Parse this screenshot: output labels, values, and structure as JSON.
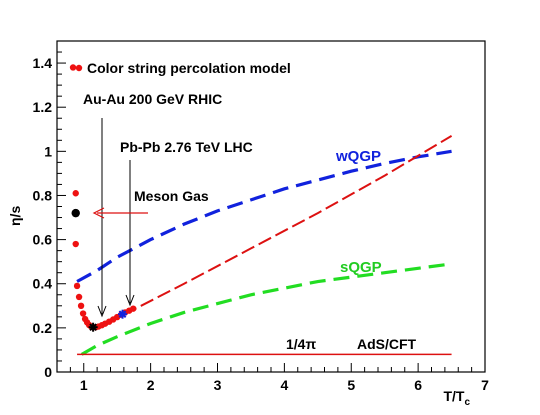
{
  "chart_data": {
    "type": "line",
    "xlabel": "T/T",
    "xlabel_sub": "c",
    "ylabel": "η/s",
    "xlim": [
      0.6,
      7
    ],
    "ylim": [
      0,
      1.5
    ],
    "xticks": [
      1,
      2,
      3,
      4,
      5,
      6,
      7
    ],
    "yticks": [
      0,
      0.2,
      0.4,
      0.6,
      0.8,
      1,
      1.2,
      1.4
    ],
    "grid": false,
    "legend": "top-left",
    "legend_entries": [
      {
        "label": "Color string percolation model",
        "marker": "dot",
        "color": "#ee1111"
      }
    ],
    "series": [
      {
        "name": "wQGP",
        "style": "dashed",
        "color": "#1122dd",
        "x": [
          0.9,
          1.2,
          1.5,
          2.0,
          2.5,
          3.0,
          3.5,
          4.0,
          4.5,
          5.0,
          5.5,
          6.0,
          6.5
        ],
        "y": [
          0.41,
          0.46,
          0.52,
          0.6,
          0.67,
          0.73,
          0.78,
          0.83,
          0.87,
          0.91,
          0.945,
          0.975,
          1.0
        ]
      },
      {
        "name": "sQGP",
        "style": "dashed",
        "color": "#22dd22",
        "x": [
          0.97,
          1.2,
          1.5,
          2.0,
          2.5,
          3.0,
          3.5,
          4.0,
          4.5,
          5.0,
          5.5,
          6.0,
          6.5
        ],
        "y": [
          0.08,
          0.12,
          0.16,
          0.22,
          0.27,
          0.31,
          0.35,
          0.38,
          0.41,
          0.43,
          0.45,
          0.47,
          0.49
        ]
      },
      {
        "name": "Color string percolation model (dashed)",
        "style": "dashed",
        "color": "#dd1111",
        "x": [
          1.6,
          2.5,
          3.5,
          4.5,
          5.5,
          6.5
        ],
        "y": [
          0.26,
          0.4,
          0.56,
          0.72,
          0.89,
          1.07
        ]
      },
      {
        "name": "AdS/CFT",
        "style": "solid",
        "color": "#dd1111",
        "x": [
          0.9,
          6.5
        ],
        "y": [
          0.0796,
          0.0796
        ]
      }
    ],
    "points": [
      {
        "x": 0.84,
        "y": 1.38,
        "color": "#ee1111",
        "r": 3.2
      },
      {
        "x": 0.88,
        "y": 0.81,
        "color": "#ee1111",
        "r": 3.2
      },
      {
        "x": 0.88,
        "y": 0.58,
        "color": "#ee1111",
        "r": 3.2
      },
      {
        "x": 0.9,
        "y": 0.39,
        "color": "#ee1111",
        "r": 3.2
      },
      {
        "x": 0.93,
        "y": 0.34,
        "color": "#ee1111",
        "r": 3.2
      },
      {
        "x": 0.96,
        "y": 0.3,
        "color": "#ee1111",
        "r": 3.2
      },
      {
        "x": 0.99,
        "y": 0.265,
        "color": "#ee1111",
        "r": 3.2
      },
      {
        "x": 1.02,
        "y": 0.24,
        "color": "#ee1111",
        "r": 3.2
      },
      {
        "x": 1.05,
        "y": 0.225,
        "color": "#ee1111",
        "r": 3.2
      },
      {
        "x": 1.08,
        "y": 0.213,
        "color": "#ee1111",
        "r": 3.2
      },
      {
        "x": 1.11,
        "y": 0.206,
        "color": "#ee1111",
        "r": 3.2
      },
      {
        "x": 1.14,
        "y": 0.203,
        "color": "#ee1111",
        "r": 3.2
      },
      {
        "x": 1.18,
        "y": 0.203,
        "color": "#ee1111",
        "r": 3.2
      },
      {
        "x": 1.22,
        "y": 0.206,
        "color": "#ee1111",
        "r": 3.2
      },
      {
        "x": 1.27,
        "y": 0.212,
        "color": "#ee1111",
        "r": 3.2
      },
      {
        "x": 1.32,
        "y": 0.219,
        "color": "#ee1111",
        "r": 3.2
      },
      {
        "x": 1.38,
        "y": 0.228,
        "color": "#ee1111",
        "r": 3.2
      },
      {
        "x": 1.44,
        "y": 0.238,
        "color": "#ee1111",
        "r": 3.2
      },
      {
        "x": 1.5,
        "y": 0.249,
        "color": "#ee1111",
        "r": 3.2
      },
      {
        "x": 1.56,
        "y": 0.26,
        "color": "#ee1111",
        "r": 3.2
      },
      {
        "x": 1.62,
        "y": 0.27,
        "color": "#ee1111",
        "r": 3.2
      },
      {
        "x": 1.68,
        "y": 0.278,
        "color": "#ee1111",
        "r": 3.2
      },
      {
        "x": 1.74,
        "y": 0.287,
        "color": "#ee1111",
        "r": 3.2
      }
    ],
    "special_points": [
      {
        "x": 0.88,
        "y": 0.72,
        "color": "#000000",
        "r": 4.2,
        "name": "meson-gas-point"
      },
      {
        "x": 1.14,
        "y": 0.203,
        "color": "#000000",
        "marker": "star",
        "name": "rhic-point"
      },
      {
        "x": 1.58,
        "y": 0.262,
        "color": "#1122dd",
        "marker": "star",
        "name": "lhc-point"
      }
    ],
    "annotations": [
      {
        "key": "rhic",
        "text": "Au-Au 200 GeV  RHIC"
      },
      {
        "key": "lhc",
        "text": "Pb-Pb 2.76 TeV  LHC"
      },
      {
        "key": "meson",
        "text": "Meson Gas"
      },
      {
        "key": "ads_inv",
        "text": "1/4π"
      },
      {
        "key": "ads",
        "text": "AdS/CFT"
      }
    ]
  }
}
